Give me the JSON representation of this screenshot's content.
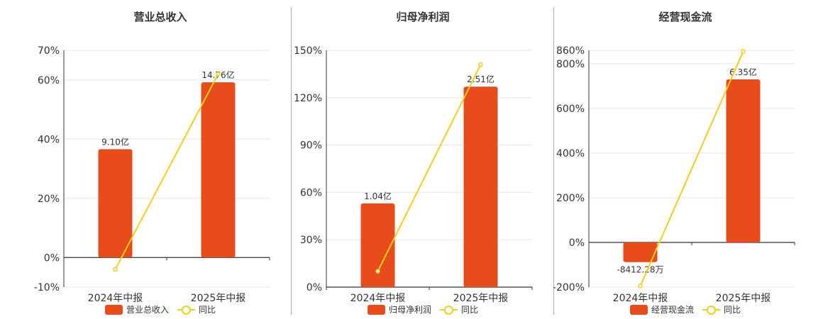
{
  "colors": {
    "bar": "#e84c1b",
    "line": "#f2cf1a",
    "axis": "#333333",
    "grid": "#e3e6ee",
    "text": "#333333"
  },
  "legend": {
    "bar_label_0": "营业总收入",
    "bar_label_1": "归母净利润",
    "bar_label_2": "经营现金流",
    "line_label": "同比"
  },
  "chart_data": [
    {
      "type": "bar",
      "title": "营业总收入",
      "categories": [
        "2024年中报",
        "2025年中报"
      ],
      "yticks": [
        "70%",
        "60%",
        "40%",
        "20%",
        "0%",
        "-10%"
      ],
      "ylim": [
        -10,
        70
      ],
      "bar_values": [
        36.6,
        59.2
      ],
      "bar_labels": [
        "9.10亿",
        "14.76亿"
      ],
      "series": [
        {
          "name": "营业总收入",
          "values": [
            9.1,
            14.76
          ]
        },
        {
          "name": "同比",
          "values": [
            -4,
            62
          ]
        }
      ]
    },
    {
      "type": "bar",
      "title": "归母净利润",
      "categories": [
        "2024年中报",
        "2025年中报"
      ],
      "yticks": [
        "150%",
        "120%",
        "90%",
        "60%",
        "30%",
        "0%"
      ],
      "ylim": [
        0,
        150
      ],
      "bar_values": [
        53,
        127
      ],
      "bar_labels": [
        "1.04亿",
        "2.51亿"
      ],
      "series": [
        {
          "name": "归母净利润",
          "values": [
            1.04,
            2.51
          ]
        },
        {
          "name": "同比",
          "values": [
            10,
            141
          ]
        }
      ]
    },
    {
      "type": "bar",
      "title": "经营现金流",
      "categories": [
        "2024年中报",
        "2025年中报"
      ],
      "yticks": [
        "860%",
        "800%",
        "600%",
        "400%",
        "200%",
        "0%",
        "-200%"
      ],
      "ylim": [
        -200,
        860
      ],
      "bar_values": [
        -88,
        730
      ],
      "bar_labels": [
        "-8412.28万",
        "6.35亿"
      ],
      "series": [
        {
          "name": "经营现金流",
          "values": [
            -0.841228,
            6.35
          ]
        },
        {
          "name": "同比",
          "values": [
            -195,
            855
          ]
        }
      ]
    }
  ]
}
